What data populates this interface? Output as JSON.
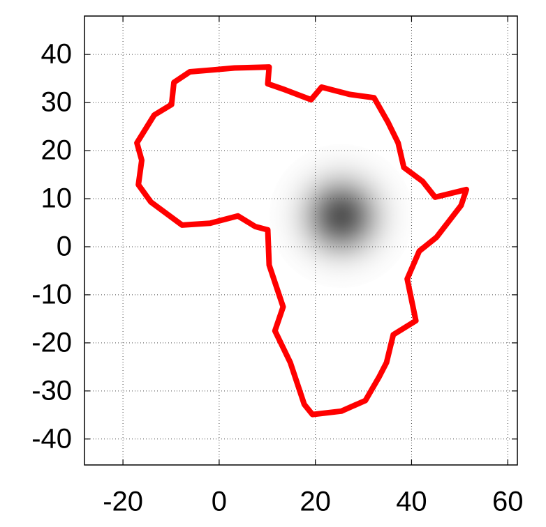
{
  "chart_data": {
    "type": "line",
    "x": [
      -6.1,
      -1.2,
      3.2,
      10.4,
      10.1,
      13.3,
      19.1,
      21.3,
      27.1,
      32.2,
      35.1,
      37.2,
      38.4,
      42.3,
      44.9,
      51.4,
      50.3,
      45.2,
      41.6,
      39.1,
      40.9,
      36.2,
      34.8,
      33.3,
      30.4,
      25.4,
      19.4,
      17.7,
      14.8,
      11.6,
      13.3,
      10.4,
      10.1,
      7.5,
      3.9,
      -1.9,
      -7.7,
      -14.2,
      -16.8,
      -16.1,
      -17.1,
      -13.5,
      -9.9,
      -9.4,
      -6.1
    ],
    "series": [
      {
        "color": "#ff0000",
        "values": [
          36.4,
          36.8,
          37.2,
          37.4,
          33.9,
          32.8,
          30.6,
          33.2,
          31.7,
          31.0,
          25.9,
          21.6,
          16.5,
          13.6,
          10.3,
          11.9,
          8.6,
          2.0,
          -0.9,
          -6.7,
          -15.4,
          -18.3,
          -24.1,
          -27.0,
          -32.0,
          -34.2,
          -34.9,
          -32.8,
          -24.1,
          -17.5,
          -12.5,
          -3.8,
          3.5,
          4.2,
          6.4,
          4.9,
          4.5,
          9.3,
          12.9,
          18.0,
          21.6,
          27.4,
          29.6,
          34.2,
          36.4
        ]
      }
    ],
    "density": {
      "center": [
        25.4,
        6.4
      ],
      "sigma": 5,
      "color": "#555555"
    },
    "xlim": [
      -28,
      62
    ],
    "ylim": [
      -45.4,
      48
    ],
    "xticks": [
      -20,
      0,
      20,
      40,
      60
    ],
    "yticks": [
      -40,
      -30,
      -20,
      -10,
      0,
      10,
      20,
      30,
      40
    ],
    "grid": true
  }
}
